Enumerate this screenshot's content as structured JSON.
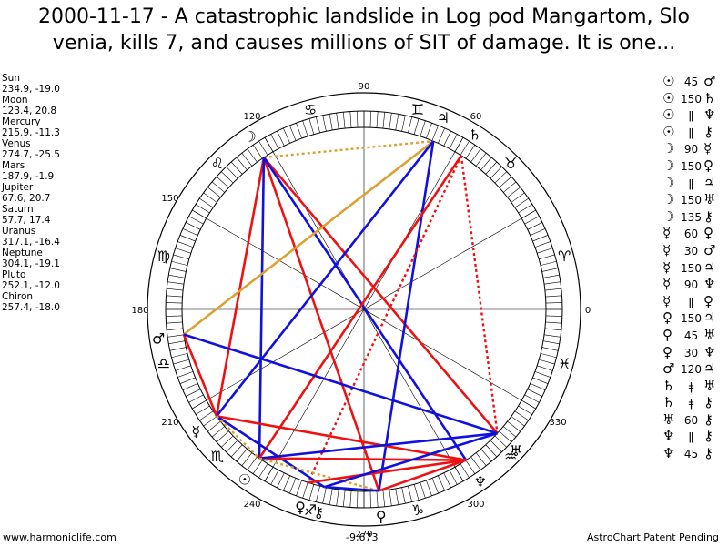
{
  "title": {
    "line1": "2000-11-17 - A catastrophic landslide in Log pod Mangartom, Slo",
    "line2": "venia, kills 7, and causes millions of SIT of damage. It is one..."
  },
  "planets": [
    {
      "name": "Sun",
      "pos": "234.9, -19.0",
      "glyph": "☉",
      "lon": 234.9
    },
    {
      "name": "Moon",
      "pos": "123.4, 20.8",
      "glyph": "☽",
      "lon": 123.4
    },
    {
      "name": "Mercury",
      "pos": "215.9, -11.3",
      "glyph": "☿",
      "lon": 215.9
    },
    {
      "name": "Venus",
      "pos": "274.7, -25.5",
      "glyph": "♀",
      "lon": 274.7
    },
    {
      "name": "Mars",
      "pos": "187.9, -1.9",
      "glyph": "♂",
      "lon": 187.9
    },
    {
      "name": "Jupiter",
      "pos": "67.6, 20.7",
      "glyph": "♃",
      "lon": 67.6
    },
    {
      "name": "Saturn",
      "pos": "57.7, 17.4",
      "glyph": "♄",
      "lon": 57.7
    },
    {
      "name": "Uranus",
      "pos": "317.1, -16.4",
      "glyph": "♅",
      "lon": 317.1
    },
    {
      "name": "Neptune",
      "pos": "304.1, -19.1",
      "glyph": "♆",
      "lon": 304.1
    },
    {
      "name": "Pluto",
      "pos": "252.1, -12.0",
      "glyph": "♀",
      "lon": 252.1
    },
    {
      "name": "Chiron",
      "pos": "257.4, -18.0",
      "glyph": "⚷",
      "lon": 257.4
    }
  ],
  "degree_labels": [
    {
      "text": "90",
      "deg": 90
    },
    {
      "text": "60",
      "deg": 60
    },
    {
      "text": "120",
      "deg": 120
    },
    {
      "text": "150",
      "deg": 150
    },
    {
      "text": "180",
      "deg": 180
    },
    {
      "text": "210",
      "deg": 210
    },
    {
      "text": "240",
      "deg": 240
    },
    {
      "text": "270",
      "deg": 270
    },
    {
      "text": "300",
      "deg": 300
    },
    {
      "text": "330",
      "deg": 330
    },
    {
      "text": "0",
      "deg": 0
    }
  ],
  "zodiac": [
    {
      "glyph": "♈",
      "deg": 15
    },
    {
      "glyph": "♉",
      "deg": 45
    },
    {
      "glyph": "♊",
      "deg": 75
    },
    {
      "glyph": "♋",
      "deg": 105
    },
    {
      "glyph": "♌",
      "deg": 135
    },
    {
      "glyph": "♍",
      "deg": 165
    },
    {
      "glyph": "♎",
      "deg": 195
    },
    {
      "glyph": "♏",
      "deg": 225
    },
    {
      "glyph": "♐",
      "deg": 255
    },
    {
      "glyph": "♑",
      "deg": 285
    },
    {
      "glyph": "♒",
      "deg": 315
    },
    {
      "glyph": "♓",
      "deg": 345
    }
  ],
  "aspect_lines": [
    {
      "a": "Moon",
      "b": "Mercury",
      "color": "#ee1111",
      "style": "solid"
    },
    {
      "a": "Moon",
      "b": "Venus",
      "color": "#ee1111",
      "style": "solid"
    },
    {
      "a": "Moon",
      "b": "Uranus",
      "color": "#ee1111",
      "style": "solid"
    },
    {
      "a": "Moon",
      "b": "Jupiter",
      "color": "#dda033",
      "style": "dotted"
    },
    {
      "a": "Moon",
      "b": "Neptune",
      "color": "#1111dd",
      "style": "solid"
    },
    {
      "a": "Moon",
      "b": "Sun",
      "color": "#1111dd",
      "style": "solid"
    },
    {
      "a": "Jupiter",
      "b": "Mars",
      "color": "#dda033",
      "style": "solid"
    },
    {
      "a": "Jupiter",
      "b": "Mercury",
      "color": "#1111dd",
      "style": "solid"
    },
    {
      "a": "Jupiter",
      "b": "Venus",
      "color": "#1111dd",
      "style": "solid"
    },
    {
      "a": "Saturn",
      "b": "Sun",
      "color": "#ee1111",
      "style": "solid"
    },
    {
      "a": "Saturn",
      "b": "Pluto",
      "color": "#ee1111",
      "style": "dotted"
    },
    {
      "a": "Saturn",
      "b": "Uranus",
      "color": "#ee1111",
      "style": "dotted"
    },
    {
      "a": "Mars",
      "b": "Mercury",
      "color": "#ee1111",
      "style": "solid"
    },
    {
      "a": "Mars",
      "b": "Uranus",
      "color": "#1111dd",
      "style": "solid"
    },
    {
      "a": "Mercury",
      "b": "Neptune",
      "color": "#ee1111",
      "style": "solid"
    },
    {
      "a": "Mercury",
      "b": "Chiron",
      "color": "#1111dd",
      "style": "solid"
    },
    {
      "a": "Mercury",
      "b": "Sun",
      "color": "#dda033",
      "style": "dotted"
    },
    {
      "a": "Sun",
      "b": "Neptune",
      "color": "#ee1111",
      "style": "solid"
    },
    {
      "a": "Sun",
      "b": "Uranus",
      "color": "#1111dd",
      "style": "solid"
    },
    {
      "a": "Sun",
      "b": "Venus",
      "color": "#dda033",
      "style": "dotted"
    },
    {
      "a": "Pluto",
      "b": "Neptune",
      "color": "#ee1111",
      "style": "solid"
    },
    {
      "a": "Chiron",
      "b": "Uranus",
      "color": "#1111dd",
      "style": "solid"
    },
    {
      "a": "Chiron",
      "b": "Venus",
      "color": "#1111dd",
      "style": "solid"
    },
    {
      "a": "Venus",
      "b": "Neptune",
      "color": "#ee1111",
      "style": "solid"
    }
  ],
  "aspects": [
    {
      "p1": "☉",
      "aspect": "45",
      "p2": "♂"
    },
    {
      "p1": "☉",
      "aspect": "150",
      "p2": "♄"
    },
    {
      "p1": "☉",
      "aspect": "ǁ",
      "p2": "♆"
    },
    {
      "p1": "☉",
      "aspect": "ǁ",
      "p2": "⚷"
    },
    {
      "p1": "☽",
      "aspect": "90",
      "p2": "☿"
    },
    {
      "p1": "☽",
      "aspect": "150",
      "p2": "♀"
    },
    {
      "p1": "☽",
      "aspect": "ǁ",
      "p2": "♃"
    },
    {
      "p1": "☽",
      "aspect": "150",
      "p2": "♅"
    },
    {
      "p1": "☽",
      "aspect": "135",
      "p2": "⚷"
    },
    {
      "p1": "☿",
      "aspect": "60",
      "p2": "♀"
    },
    {
      "p1": "☿",
      "aspect": "30",
      "p2": "♂"
    },
    {
      "p1": "☿",
      "aspect": "150",
      "p2": "♃"
    },
    {
      "p1": "☿",
      "aspect": "90",
      "p2": "♆"
    },
    {
      "p1": "☿",
      "aspect": "ǁ",
      "p2": "♀"
    },
    {
      "p1": "♀",
      "aspect": "150",
      "p2": "♃"
    },
    {
      "p1": "♀",
      "aspect": "45",
      "p2": "♅"
    },
    {
      "p1": "♀",
      "aspect": "30",
      "p2": "♆"
    },
    {
      "p1": "♂",
      "aspect": "120",
      "p2": "♃"
    },
    {
      "p1": "♄",
      "aspect": "ǂ",
      "p2": "♅"
    },
    {
      "p1": "♄",
      "aspect": "ǂ",
      "p2": "⚷"
    },
    {
      "p1": "♅",
      "aspect": "60",
      "p2": "⚷"
    },
    {
      "p1": "♆",
      "aspect": "ǁ",
      "p2": "⚷"
    },
    {
      "p1": "♆",
      "aspect": "45",
      "p2": "⚷"
    }
  ],
  "footer": {
    "left": "www.harmoniclife.com",
    "center": "-9,673",
    "right": "AstroChart Patent Pending"
  }
}
